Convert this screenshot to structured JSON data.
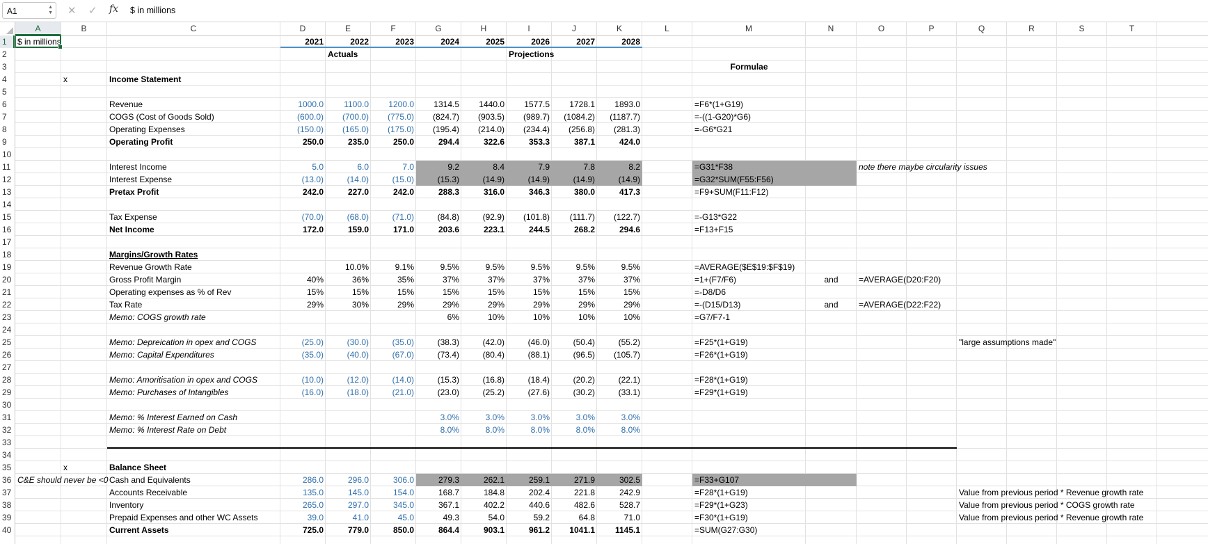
{
  "formula_bar": {
    "name_box": "A1",
    "cancel_icon": "close-icon",
    "enter_icon": "check-icon",
    "fx_label": "fx",
    "formula": "$ in millions"
  },
  "selected_cell": "A1",
  "colors": {
    "input_blue": "#2f6fad",
    "highlight_gray": "#a6a6a6",
    "year_underline": "#4a90c8",
    "selection_green": "#1d6b3a"
  },
  "columns": [
    "A",
    "B",
    "C",
    "D",
    "E",
    "F",
    "G",
    "H",
    "I",
    "J",
    "K",
    "L",
    "M",
    "N",
    "O",
    "P",
    "Q",
    "R",
    "S",
    "T"
  ],
  "rows": [
    "1",
    "2",
    "3",
    "4",
    "5",
    "6",
    "7",
    "8",
    "9",
    "10",
    "11",
    "12",
    "13",
    "14",
    "15",
    "16",
    "17",
    "18",
    "19",
    "20",
    "21",
    "22",
    "23",
    "24",
    "25",
    "26",
    "27",
    "28",
    "29",
    "30",
    "31",
    "32",
    "33",
    "34",
    "35",
    "36",
    "37",
    "38",
    "39",
    "40"
  ],
  "cells": [
    {
      "ref": "A1",
      "v": "$ in millions"
    },
    {
      "ref": "D1",
      "v": "2021",
      "s": "b r"
    },
    {
      "ref": "E1",
      "v": "2022",
      "s": "b r"
    },
    {
      "ref": "F1",
      "v": "2023",
      "s": "b r"
    },
    {
      "ref": "G1",
      "v": "2024",
      "s": "b r"
    },
    {
      "ref": "H1",
      "v": "2025",
      "s": "b r"
    },
    {
      "ref": "I1",
      "v": "2026",
      "s": "b r"
    },
    {
      "ref": "J1",
      "v": "2027",
      "s": "b r"
    },
    {
      "ref": "K1",
      "v": "2028",
      "s": "b r"
    },
    {
      "ref": "E2",
      "v": "Actuals",
      "s": "b"
    },
    {
      "ref": "I2",
      "v": "Projections",
      "s": "b"
    },
    {
      "ref": "M3",
      "v": "Formulae",
      "s": "b c"
    },
    {
      "ref": "B4",
      "v": "x"
    },
    {
      "ref": "C4",
      "v": "Income Statement",
      "s": "b"
    },
    {
      "ref": "C6",
      "v": "Revenue"
    },
    {
      "ref": "D6",
      "v": "1000.0",
      "s": "r blue"
    },
    {
      "ref": "E6",
      "v": "1100.0",
      "s": "r blue"
    },
    {
      "ref": "F6",
      "v": "1200.0",
      "s": "r blue"
    },
    {
      "ref": "G6",
      "v": "1314.5",
      "s": "r"
    },
    {
      "ref": "H6",
      "v": "1440.0",
      "s": "r"
    },
    {
      "ref": "I6",
      "v": "1577.5",
      "s": "r"
    },
    {
      "ref": "J6",
      "v": "1728.1",
      "s": "r"
    },
    {
      "ref": "K6",
      "v": "1893.0",
      "s": "r"
    },
    {
      "ref": "M6",
      "v": "=F6*(1+G19)"
    },
    {
      "ref": "C7",
      "v": "COGS (Cost of Goods Sold)"
    },
    {
      "ref": "D7",
      "v": "(600.0)",
      "s": "r blue"
    },
    {
      "ref": "E7",
      "v": "(700.0)",
      "s": "r blue"
    },
    {
      "ref": "F7",
      "v": "(775.0)",
      "s": "r blue"
    },
    {
      "ref": "G7",
      "v": "(824.7)",
      "s": "r"
    },
    {
      "ref": "H7",
      "v": "(903.5)",
      "s": "r"
    },
    {
      "ref": "I7",
      "v": "(989.7)",
      "s": "r"
    },
    {
      "ref": "J7",
      "v": "(1084.2)",
      "s": "r"
    },
    {
      "ref": "K7",
      "v": "(1187.7)",
      "s": "r"
    },
    {
      "ref": "M7",
      "v": "=-((1-G20)*G6)"
    },
    {
      "ref": "C8",
      "v": "Operating Expenses"
    },
    {
      "ref": "D8",
      "v": "(150.0)",
      "s": "r blue"
    },
    {
      "ref": "E8",
      "v": "(165.0)",
      "s": "r blue"
    },
    {
      "ref": "F8",
      "v": "(175.0)",
      "s": "r blue"
    },
    {
      "ref": "G8",
      "v": "(195.4)",
      "s": "r"
    },
    {
      "ref": "H8",
      "v": "(214.0)",
      "s": "r"
    },
    {
      "ref": "I8",
      "v": "(234.4)",
      "s": "r"
    },
    {
      "ref": "J8",
      "v": "(256.8)",
      "s": "r"
    },
    {
      "ref": "K8",
      "v": "(281.3)",
      "s": "r"
    },
    {
      "ref": "M8",
      "v": "=-G6*G21"
    },
    {
      "ref": "C9",
      "v": "Operating Profit",
      "s": "b"
    },
    {
      "ref": "D9",
      "v": "250.0",
      "s": "r b"
    },
    {
      "ref": "E9",
      "v": "235.0",
      "s": "r b"
    },
    {
      "ref": "F9",
      "v": "250.0",
      "s": "r b"
    },
    {
      "ref": "G9",
      "v": "294.4",
      "s": "r b"
    },
    {
      "ref": "H9",
      "v": "322.6",
      "s": "r b"
    },
    {
      "ref": "I9",
      "v": "353.3",
      "s": "r b"
    },
    {
      "ref": "J9",
      "v": "387.1",
      "s": "r b"
    },
    {
      "ref": "K9",
      "v": "424.0",
      "s": "r b"
    },
    {
      "ref": "C11",
      "v": "Interest Income"
    },
    {
      "ref": "D11",
      "v": "5.0",
      "s": "r blue"
    },
    {
      "ref": "E11",
      "v": "6.0",
      "s": "r blue"
    },
    {
      "ref": "F11",
      "v": "7.0",
      "s": "r blue"
    },
    {
      "ref": "G11",
      "v": "9.2",
      "s": "r gray"
    },
    {
      "ref": "H11",
      "v": "8.4",
      "s": "r gray"
    },
    {
      "ref": "I11",
      "v": "7.9",
      "s": "r gray"
    },
    {
      "ref": "J11",
      "v": "7.8",
      "s": "r gray"
    },
    {
      "ref": "K11",
      "v": "8.2",
      "s": "r gray"
    },
    {
      "ref": "M11",
      "v": "=G31*F38",
      "s": "gray",
      "span": 2
    },
    {
      "ref": "O11",
      "v": "note there maybe circularity issues",
      "s": "i"
    },
    {
      "ref": "C12",
      "v": "Interest Expense"
    },
    {
      "ref": "D12",
      "v": "(13.0)",
      "s": "r blue"
    },
    {
      "ref": "E12",
      "v": "(14.0)",
      "s": "r blue"
    },
    {
      "ref": "F12",
      "v": "(15.0)",
      "s": "r blue"
    },
    {
      "ref": "G12",
      "v": "(15.3)",
      "s": "r gray"
    },
    {
      "ref": "H12",
      "v": "(14.9)",
      "s": "r gray"
    },
    {
      "ref": "I12",
      "v": "(14.9)",
      "s": "r gray"
    },
    {
      "ref": "J12",
      "v": "(14.9)",
      "s": "r gray"
    },
    {
      "ref": "K12",
      "v": "(14.9)",
      "s": "r gray"
    },
    {
      "ref": "M12",
      "v": "=G32*SUM(F55:F56)",
      "s": "gray",
      "span": 2
    },
    {
      "ref": "C13",
      "v": "Pretax Profit",
      "s": "b"
    },
    {
      "ref": "D13",
      "v": "242.0",
      "s": "r b"
    },
    {
      "ref": "E13",
      "v": "227.0",
      "s": "r b"
    },
    {
      "ref": "F13",
      "v": "242.0",
      "s": "r b"
    },
    {
      "ref": "G13",
      "v": "288.3",
      "s": "r b"
    },
    {
      "ref": "H13",
      "v": "316.0",
      "s": "r b"
    },
    {
      "ref": "I13",
      "v": "346.3",
      "s": "r b"
    },
    {
      "ref": "J13",
      "v": "380.0",
      "s": "r b"
    },
    {
      "ref": "K13",
      "v": "417.3",
      "s": "r b"
    },
    {
      "ref": "M13",
      "v": "=F9+SUM(F11:F12)"
    },
    {
      "ref": "C15",
      "v": "Tax Expense"
    },
    {
      "ref": "D15",
      "v": "(70.0)",
      "s": "r blue"
    },
    {
      "ref": "E15",
      "v": "(68.0)",
      "s": "r blue"
    },
    {
      "ref": "F15",
      "v": "(71.0)",
      "s": "r blue"
    },
    {
      "ref": "G15",
      "v": "(84.8)",
      "s": "r"
    },
    {
      "ref": "H15",
      "v": "(92.9)",
      "s": "r"
    },
    {
      "ref": "I15",
      "v": "(101.8)",
      "s": "r"
    },
    {
      "ref": "J15",
      "v": "(111.7)",
      "s": "r"
    },
    {
      "ref": "K15",
      "v": "(122.7)",
      "s": "r"
    },
    {
      "ref": "M15",
      "v": "=-G13*G22"
    },
    {
      "ref": "C16",
      "v": "Net Income",
      "s": "b"
    },
    {
      "ref": "D16",
      "v": "172.0",
      "s": "r b"
    },
    {
      "ref": "E16",
      "v": "159.0",
      "s": "r b"
    },
    {
      "ref": "F16",
      "v": "171.0",
      "s": "r b"
    },
    {
      "ref": "G16",
      "v": "203.6",
      "s": "r b"
    },
    {
      "ref": "H16",
      "v": "223.1",
      "s": "r b"
    },
    {
      "ref": "I16",
      "v": "244.5",
      "s": "r b"
    },
    {
      "ref": "J16",
      "v": "268.2",
      "s": "r b"
    },
    {
      "ref": "K16",
      "v": "294.6",
      "s": "r b"
    },
    {
      "ref": "M16",
      "v": "=F13+F15"
    },
    {
      "ref": "C18",
      "v": "Margins/Growth Rates",
      "s": "b u"
    },
    {
      "ref": "C19",
      "v": "Revenue Growth Rate"
    },
    {
      "ref": "E19",
      "v": "10.0%",
      "s": "r"
    },
    {
      "ref": "F19",
      "v": "9.1%",
      "s": "r"
    },
    {
      "ref": "G19",
      "v": "9.5%",
      "s": "r"
    },
    {
      "ref": "H19",
      "v": "9.5%",
      "s": "r"
    },
    {
      "ref": "I19",
      "v": "9.5%",
      "s": "r"
    },
    {
      "ref": "J19",
      "v": "9.5%",
      "s": "r"
    },
    {
      "ref": "K19",
      "v": "9.5%",
      "s": "r"
    },
    {
      "ref": "M19",
      "v": "=AVERAGE($E$19:$F$19)"
    },
    {
      "ref": "C20",
      "v": "Gross Profit Margin"
    },
    {
      "ref": "D20",
      "v": "40%",
      "s": "r"
    },
    {
      "ref": "E20",
      "v": "36%",
      "s": "r"
    },
    {
      "ref": "F20",
      "v": "35%",
      "s": "r"
    },
    {
      "ref": "G20",
      "v": "37%",
      "s": "r"
    },
    {
      "ref": "H20",
      "v": "37%",
      "s": "r"
    },
    {
      "ref": "I20",
      "v": "37%",
      "s": "r"
    },
    {
      "ref": "J20",
      "v": "37%",
      "s": "r"
    },
    {
      "ref": "K20",
      "v": "37%",
      "s": "r"
    },
    {
      "ref": "M20",
      "v": "=1+(F7/F6)"
    },
    {
      "ref": "N20",
      "v": "and",
      "s": "c"
    },
    {
      "ref": "O20",
      "v": "=AVERAGE(D20:F20)"
    },
    {
      "ref": "C21",
      "v": "Operating expenses as % of Rev"
    },
    {
      "ref": "D21",
      "v": "15%",
      "s": "r"
    },
    {
      "ref": "E21",
      "v": "15%",
      "s": "r"
    },
    {
      "ref": "F21",
      "v": "15%",
      "s": "r"
    },
    {
      "ref": "G21",
      "v": "15%",
      "s": "r"
    },
    {
      "ref": "H21",
      "v": "15%",
      "s": "r"
    },
    {
      "ref": "I21",
      "v": "15%",
      "s": "r"
    },
    {
      "ref": "J21",
      "v": "15%",
      "s": "r"
    },
    {
      "ref": "K21",
      "v": "15%",
      "s": "r"
    },
    {
      "ref": "M21",
      "v": "=-D8/D6"
    },
    {
      "ref": "C22",
      "v": "Tax Rate"
    },
    {
      "ref": "D22",
      "v": "29%",
      "s": "r"
    },
    {
      "ref": "E22",
      "v": "30%",
      "s": "r"
    },
    {
      "ref": "F22",
      "v": "29%",
      "s": "r"
    },
    {
      "ref": "G22",
      "v": "29%",
      "s": "r"
    },
    {
      "ref": "H22",
      "v": "29%",
      "s": "r"
    },
    {
      "ref": "I22",
      "v": "29%",
      "s": "r"
    },
    {
      "ref": "J22",
      "v": "29%",
      "s": "r"
    },
    {
      "ref": "K22",
      "v": "29%",
      "s": "r"
    },
    {
      "ref": "M22",
      "v": "=-(D15/D13)"
    },
    {
      "ref": "N22",
      "v": "and",
      "s": "c"
    },
    {
      "ref": "O22",
      "v": "=AVERAGE(D22:F22)"
    },
    {
      "ref": "C23",
      "v": "Memo: COGS growth rate",
      "s": "i"
    },
    {
      "ref": "G23",
      "v": "6%",
      "s": "r"
    },
    {
      "ref": "H23",
      "v": "10%",
      "s": "r"
    },
    {
      "ref": "I23",
      "v": "10%",
      "s": "r"
    },
    {
      "ref": "J23",
      "v": "10%",
      "s": "r"
    },
    {
      "ref": "K23",
      "v": "10%",
      "s": "r"
    },
    {
      "ref": "M23",
      "v": "=G7/F7-1"
    },
    {
      "ref": "C25",
      "v": "Memo: Depreication in opex and COGS",
      "s": "i"
    },
    {
      "ref": "D25",
      "v": "(25.0)",
      "s": "r blue"
    },
    {
      "ref": "E25",
      "v": "(30.0)",
      "s": "r blue"
    },
    {
      "ref": "F25",
      "v": "(35.0)",
      "s": "r blue"
    },
    {
      "ref": "G25",
      "v": "(38.3)",
      "s": "r"
    },
    {
      "ref": "H25",
      "v": "(42.0)",
      "s": "r"
    },
    {
      "ref": "I25",
      "v": "(46.0)",
      "s": "r"
    },
    {
      "ref": "J25",
      "v": "(50.4)",
      "s": "r"
    },
    {
      "ref": "K25",
      "v": "(55.2)",
      "s": "r"
    },
    {
      "ref": "M25",
      "v": "=F25*(1+G19)"
    },
    {
      "ref": "Q25",
      "v": "\"large assumptions made\""
    },
    {
      "ref": "C26",
      "v": "Memo: Capital Expenditures",
      "s": "i"
    },
    {
      "ref": "D26",
      "v": "(35.0)",
      "s": "r blue"
    },
    {
      "ref": "E26",
      "v": "(40.0)",
      "s": "r blue"
    },
    {
      "ref": "F26",
      "v": "(67.0)",
      "s": "r blue"
    },
    {
      "ref": "G26",
      "v": "(73.4)",
      "s": "r"
    },
    {
      "ref": "H26",
      "v": "(80.4)",
      "s": "r"
    },
    {
      "ref": "I26",
      "v": "(88.1)",
      "s": "r"
    },
    {
      "ref": "J26",
      "v": "(96.5)",
      "s": "r"
    },
    {
      "ref": "K26",
      "v": "(105.7)",
      "s": "r"
    },
    {
      "ref": "M26",
      "v": "=F26*(1+G19)"
    },
    {
      "ref": "C28",
      "v": "Memo: Amoritisation in opex and COGS",
      "s": "i"
    },
    {
      "ref": "D28",
      "v": "(10.0)",
      "s": "r blue"
    },
    {
      "ref": "E28",
      "v": "(12.0)",
      "s": "r blue"
    },
    {
      "ref": "F28",
      "v": "(14.0)",
      "s": "r blue"
    },
    {
      "ref": "G28",
      "v": "(15.3)",
      "s": "r"
    },
    {
      "ref": "H28",
      "v": "(16.8)",
      "s": "r"
    },
    {
      "ref": "I28",
      "v": "(18.4)",
      "s": "r"
    },
    {
      "ref": "J28",
      "v": "(20.2)",
      "s": "r"
    },
    {
      "ref": "K28",
      "v": "(22.1)",
      "s": "r"
    },
    {
      "ref": "M28",
      "v": "=F28*(1+G19)"
    },
    {
      "ref": "C29",
      "v": "Memo: Purchases of Intangibles",
      "s": "i"
    },
    {
      "ref": "D29",
      "v": "(16.0)",
      "s": "r blue"
    },
    {
      "ref": "E29",
      "v": "(18.0)",
      "s": "r blue"
    },
    {
      "ref": "F29",
      "v": "(21.0)",
      "s": "r blue"
    },
    {
      "ref": "G29",
      "v": "(23.0)",
      "s": "r"
    },
    {
      "ref": "H29",
      "v": "(25.2)",
      "s": "r"
    },
    {
      "ref": "I29",
      "v": "(27.6)",
      "s": "r"
    },
    {
      "ref": "J29",
      "v": "(30.2)",
      "s": "r"
    },
    {
      "ref": "K29",
      "v": "(33.1)",
      "s": "r"
    },
    {
      "ref": "M29",
      "v": "=F29*(1+G19)"
    },
    {
      "ref": "C31",
      "v": "Memo: % Interest Earned on Cash",
      "s": "i"
    },
    {
      "ref": "G31",
      "v": "3.0%",
      "s": "r blue"
    },
    {
      "ref": "H31",
      "v": "3.0%",
      "s": "r blue"
    },
    {
      "ref": "I31",
      "v": "3.0%",
      "s": "r blue"
    },
    {
      "ref": "J31",
      "v": "3.0%",
      "s": "r blue"
    },
    {
      "ref": "K31",
      "v": "3.0%",
      "s": "r blue"
    },
    {
      "ref": "C32",
      "v": "Memo: % Interest Rate on Debt",
      "s": "i"
    },
    {
      "ref": "G32",
      "v": "8.0%",
      "s": "r blue"
    },
    {
      "ref": "H32",
      "v": "8.0%",
      "s": "r blue"
    },
    {
      "ref": "I32",
      "v": "8.0%",
      "s": "r blue"
    },
    {
      "ref": "J32",
      "v": "8.0%",
      "s": "r blue"
    },
    {
      "ref": "K32",
      "v": "8.0%",
      "s": "r blue"
    },
    {
      "ref": "B35",
      "v": "x"
    },
    {
      "ref": "C35",
      "v": "Balance Sheet",
      "s": "b"
    },
    {
      "ref": "A36",
      "v": "C&E should never be <0",
      "s": "i"
    },
    {
      "ref": "C36",
      "v": "Cash and Equivalents"
    },
    {
      "ref": "D36",
      "v": "286.0",
      "s": "r blue"
    },
    {
      "ref": "E36",
      "v": "296.0",
      "s": "r blue"
    },
    {
      "ref": "F36",
      "v": "306.0",
      "s": "r blue"
    },
    {
      "ref": "G36",
      "v": "279.3",
      "s": "r gray"
    },
    {
      "ref": "H36",
      "v": "262.1",
      "s": "r gray"
    },
    {
      "ref": "I36",
      "v": "259.1",
      "s": "r gray"
    },
    {
      "ref": "J36",
      "v": "271.9",
      "s": "r gray"
    },
    {
      "ref": "K36",
      "v": "302.5",
      "s": "r gray"
    },
    {
      "ref": "M36",
      "v": "=F33+G107",
      "s": "gray",
      "span": 2
    },
    {
      "ref": "C37",
      "v": "Accounts Receivable"
    },
    {
      "ref": "D37",
      "v": "135.0",
      "s": "r blue"
    },
    {
      "ref": "E37",
      "v": "145.0",
      "s": "r blue"
    },
    {
      "ref": "F37",
      "v": "154.0",
      "s": "r blue"
    },
    {
      "ref": "G37",
      "v": "168.7",
      "s": "r"
    },
    {
      "ref": "H37",
      "v": "184.8",
      "s": "r"
    },
    {
      "ref": "I37",
      "v": "202.4",
      "s": "r"
    },
    {
      "ref": "J37",
      "v": "221.8",
      "s": "r"
    },
    {
      "ref": "K37",
      "v": "242.9",
      "s": "r"
    },
    {
      "ref": "M37",
      "v": "=F28*(1+G19)"
    },
    {
      "ref": "Q37",
      "v": "Value from previous period * Revenue growth rate"
    },
    {
      "ref": "C38",
      "v": "Inventory"
    },
    {
      "ref": "D38",
      "v": "265.0",
      "s": "r blue"
    },
    {
      "ref": "E38",
      "v": "297.0",
      "s": "r blue"
    },
    {
      "ref": "F38",
      "v": "345.0",
      "s": "r blue"
    },
    {
      "ref": "G38",
      "v": "367.1",
      "s": "r"
    },
    {
      "ref": "H38",
      "v": "402.2",
      "s": "r"
    },
    {
      "ref": "I38",
      "v": "440.6",
      "s": "r"
    },
    {
      "ref": "J38",
      "v": "482.6",
      "s": "r"
    },
    {
      "ref": "K38",
      "v": "528.7",
      "s": "r"
    },
    {
      "ref": "M38",
      "v": "=F29*(1+G23)"
    },
    {
      "ref": "Q38",
      "v": "Value from previous period * COGS growth rate"
    },
    {
      "ref": "C39",
      "v": "Prepaid Expenses and other WC Assets"
    },
    {
      "ref": "D39",
      "v": "39.0",
      "s": "r blue"
    },
    {
      "ref": "E39",
      "v": "41.0",
      "s": "r blue"
    },
    {
      "ref": "F39",
      "v": "45.0",
      "s": "r blue"
    },
    {
      "ref": "G39",
      "v": "49.3",
      "s": "r"
    },
    {
      "ref": "H39",
      "v": "54.0",
      "s": "r"
    },
    {
      "ref": "I39",
      "v": "59.2",
      "s": "r"
    },
    {
      "ref": "J39",
      "v": "64.8",
      "s": "r"
    },
    {
      "ref": "K39",
      "v": "71.0",
      "s": "r"
    },
    {
      "ref": "M39",
      "v": "=F30*(1+G19)"
    },
    {
      "ref": "Q39",
      "v": "Value from previous period * Revenue growth rate"
    },
    {
      "ref": "C40",
      "v": "Current Assets",
      "s": "b"
    },
    {
      "ref": "D40",
      "v": "725.0",
      "s": "r b"
    },
    {
      "ref": "E40",
      "v": "779.0",
      "s": "r b"
    },
    {
      "ref": "F40",
      "v": "850.0",
      "s": "r b"
    },
    {
      "ref": "G40",
      "v": "864.4",
      "s": "r b"
    },
    {
      "ref": "H40",
      "v": "903.1",
      "s": "r b"
    },
    {
      "ref": "I40",
      "v": "961.2",
      "s": "r b"
    },
    {
      "ref": "J40",
      "v": "1041.1",
      "s": "r b"
    },
    {
      "ref": "K40",
      "v": "1145.1",
      "s": "r b"
    },
    {
      "ref": "M40",
      "v": "=SUM(G27:G30)"
    }
  ]
}
